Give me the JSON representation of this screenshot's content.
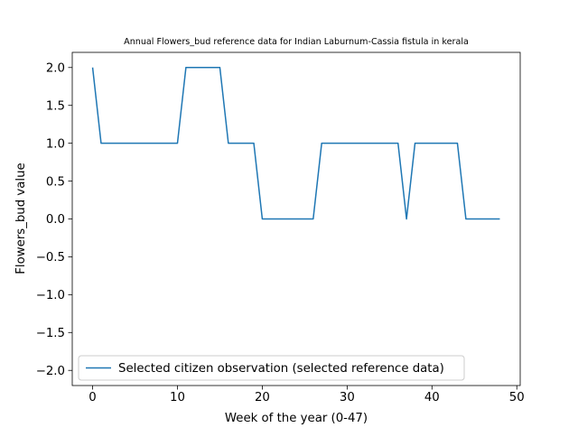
{
  "chart_data": {
    "type": "line",
    "title": "Annual Flowers_bud reference data for Indian Laburnum-Cassia fistula in kerala",
    "xlabel": "Week of the year (0-47)",
    "ylabel": "Flowers_bud value",
    "xlim": [
      -2.4,
      50.4
    ],
    "ylim": [
      -2.2,
      2.2
    ],
    "x_ticks": [
      0,
      10,
      20,
      30,
      40,
      50
    ],
    "x_tick_labels": [
      "0",
      "10",
      "20",
      "30",
      "40",
      "50"
    ],
    "y_ticks": [
      -2.0,
      -1.5,
      -1.0,
      -0.5,
      0.0,
      0.5,
      1.0,
      1.5,
      2.0
    ],
    "y_tick_labels": [
      "−2.0",
      "−1.5",
      "−1.0",
      "−0.5",
      "0.0",
      "0.5",
      "1.0",
      "1.5",
      "2.0"
    ],
    "grid": false,
    "legend_position": "lower-left",
    "series": [
      {
        "name": "Selected citizen observation (selected reference data)",
        "color": "#1f77b4",
        "x": [
          0,
          1,
          2,
          3,
          4,
          5,
          6,
          7,
          8,
          9,
          10,
          11,
          12,
          13,
          14,
          15,
          16,
          17,
          18,
          19,
          20,
          21,
          22,
          23,
          24,
          25,
          26,
          27,
          28,
          29,
          30,
          31,
          32,
          33,
          34,
          35,
          36,
          37,
          38,
          39,
          40,
          41,
          42,
          43,
          44,
          45,
          46,
          47,
          48
        ],
        "y": [
          2,
          1,
          1,
          1,
          1,
          1,
          1,
          1,
          1,
          1,
          1,
          2,
          2,
          2,
          2,
          2,
          1,
          1,
          1,
          1,
          0,
          0,
          0,
          0,
          0,
          0,
          0,
          1,
          1,
          1,
          1,
          1,
          1,
          1,
          1,
          1,
          1,
          0,
          1,
          1,
          1,
          1,
          1,
          1,
          0,
          0,
          0,
          0,
          0
        ]
      }
    ]
  }
}
